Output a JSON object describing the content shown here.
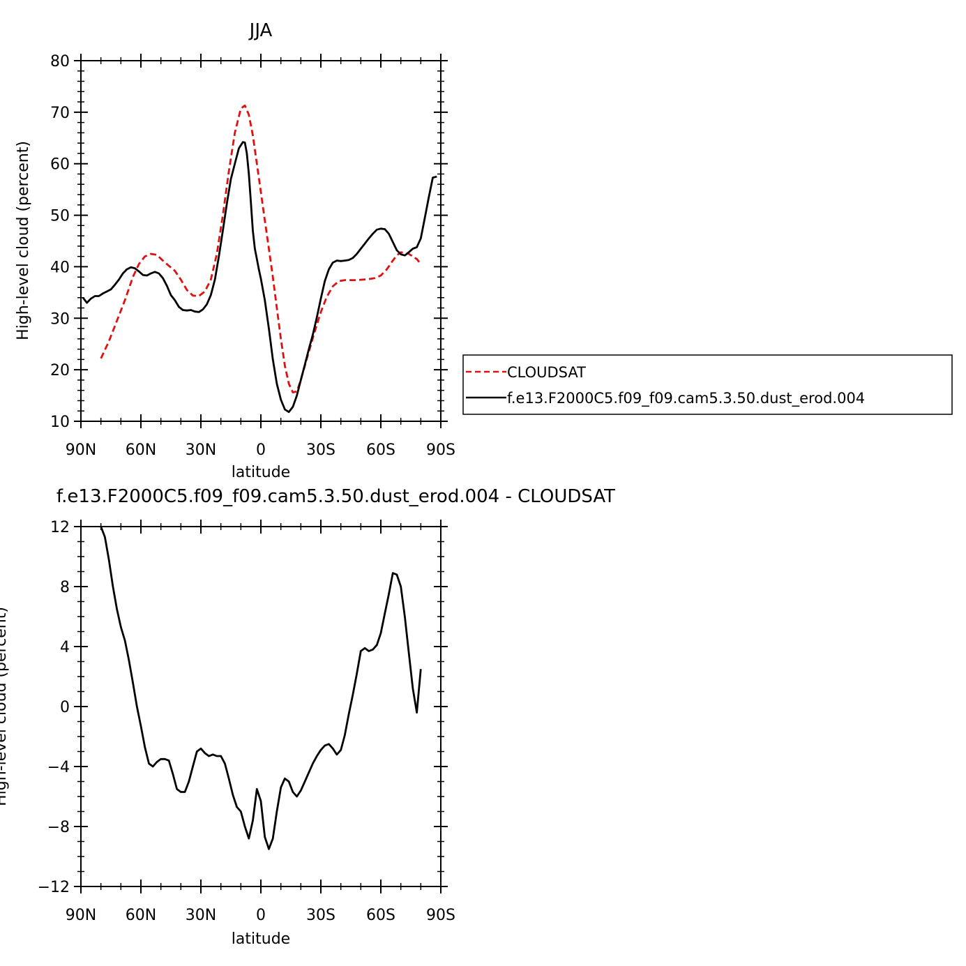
{
  "chart_data": [
    {
      "type": "line",
      "title": "JJA",
      "xlabel": "latitude",
      "ylabel": "High-level cloud (percent)",
      "xlim": [
        90,
        -90
      ],
      "ylim": [
        10,
        80
      ],
      "xticks": [
        90,
        60,
        30,
        0,
        -30,
        -60,
        -90
      ],
      "xticklabels": [
        "90N",
        "60N",
        "30N",
        "0",
        "30S",
        "60S",
        "90S"
      ],
      "yticks": [
        10,
        20,
        30,
        40,
        50,
        60,
        70,
        80
      ],
      "yticklabels": [
        "10",
        "20",
        "30",
        "40",
        "50",
        "60",
        "70",
        "80"
      ],
      "legend_position": "right",
      "series": [
        {
          "name": "CLOUDSAT",
          "color": "#e01010",
          "dash": "dashed",
          "x": [
            80,
            76,
            72,
            68,
            64,
            61,
            58,
            55,
            52,
            49,
            46,
            43,
            40,
            37,
            34,
            31,
            28,
            25,
            22,
            19,
            16,
            13,
            10,
            8,
            6,
            4,
            2,
            0,
            -2,
            -4,
            -6,
            -8,
            -10,
            -12,
            -14,
            -16,
            -18,
            -20,
            -22,
            -24,
            -27,
            -30,
            -33,
            -36,
            -39,
            -42,
            -45,
            -48,
            -51,
            -54,
            -57,
            -60,
            -63,
            -66,
            -68,
            -70,
            -72,
            -74,
            -76,
            -78,
            -80
          ],
          "y": [
            22.2,
            25.5,
            29.5,
            33.5,
            38,
            40.5,
            42,
            42.5,
            42.3,
            41.2,
            40.2,
            39.2,
            37.5,
            35.5,
            34.4,
            34.3,
            35.2,
            37.5,
            42.5,
            50,
            58.5,
            66,
            70.7,
            71.3,
            69.5,
            65.5,
            60,
            54.5,
            49,
            43.5,
            38,
            32,
            26,
            20.8,
            17.3,
            15.6,
            15.8,
            18,
            20.8,
            23.5,
            27.5,
            31.2,
            34.2,
            36.2,
            37.2,
            37.4,
            37.4,
            37.4,
            37.5,
            37.6,
            37.8,
            38.3,
            39.5,
            41.2,
            42.2,
            42.8,
            42.7,
            42.5,
            42,
            41.5,
            40.5
          ]
        },
        {
          "name": "f.e13.F2000C5.f09_f09.cam5.3.50.dust_erod.004",
          "color": "#000000",
          "dash": "solid",
          "x": [
            89,
            87,
            85,
            83,
            81,
            79,
            77,
            75,
            73,
            71,
            69,
            67,
            65,
            63,
            61,
            59,
            57,
            55,
            53,
            51,
            49,
            47,
            45,
            43,
            41,
            39,
            37,
            35,
            33,
            31,
            29,
            27,
            25,
            23,
            21,
            19,
            17,
            15,
            13,
            11,
            9,
            8,
            7,
            6,
            5,
            4,
            3,
            2,
            1,
            0,
            -2,
            -4,
            -6,
            -8,
            -10,
            -12,
            -14,
            -16,
            -18,
            -20,
            -22,
            -24,
            -26,
            -28,
            -30,
            -32,
            -34,
            -36,
            -38,
            -40,
            -42,
            -44,
            -46,
            -48,
            -50,
            -52,
            -54,
            -56,
            -58,
            -60,
            -62,
            -64,
            -66,
            -68,
            -70,
            -72,
            -74,
            -76,
            -78,
            -80,
            -82,
            -84,
            -86,
            -88
          ],
          "y": [
            34,
            33,
            33.8,
            34.3,
            34.3,
            34.8,
            35.2,
            35.6,
            36.5,
            37.5,
            38.7,
            39.5,
            39.9,
            39.7,
            39.1,
            38.4,
            38.3,
            38.7,
            39,
            38.7,
            37.8,
            36.3,
            34.5,
            33.5,
            32.2,
            31.6,
            31.5,
            31.6,
            31.3,
            31.2,
            31.7,
            32.7,
            34.5,
            37.5,
            42,
            47,
            52.3,
            57,
            60,
            63,
            64.2,
            64.1,
            62,
            58,
            52.5,
            47,
            43.5,
            41.5,
            39.5,
            37.7,
            33.5,
            28,
            22,
            17.3,
            14.2,
            12.3,
            11.8,
            12.8,
            15,
            18,
            21,
            24,
            26.8,
            30.2,
            33.8,
            37.2,
            39.5,
            40.8,
            41.2,
            41.1,
            41.2,
            41.3,
            41.7,
            42.5,
            43.5,
            44.5,
            45.5,
            46.4,
            47.2,
            47.4,
            47.3,
            46.4,
            44.8,
            43.2,
            42.4,
            42.2,
            42.8,
            43.5,
            43.8,
            45.5,
            49.5,
            53.5,
            57.3,
            57.5
          ]
        }
      ]
    },
    {
      "type": "line",
      "title": "f.e13.F2000C5.f09_f09.cam5.3.50.dust_erod.004 - CLOUDSAT",
      "xlabel": "latitude",
      "ylabel": "High-level cloud (percent)",
      "xlim": [
        90,
        -90
      ],
      "ylim": [
        -12,
        12
      ],
      "xticks": [
        90,
        60,
        30,
        0,
        -30,
        -60,
        -90
      ],
      "xticklabels": [
        "90N",
        "60N",
        "30N",
        "0",
        "30S",
        "60S",
        "90S"
      ],
      "yticks": [
        -12,
        -8,
        -4,
        0,
        4,
        8,
        12
      ],
      "yticklabels": [
        "−12",
        "−8",
        "−4",
        "0",
        "4",
        "8",
        "12"
      ],
      "series": [
        {
          "color": "#000000",
          "x": [
            80,
            78,
            76,
            74,
            72,
            70,
            68,
            66,
            64,
            62,
            60,
            58,
            56,
            54,
            52,
            50,
            48,
            46,
            44,
            42,
            40,
            38,
            36,
            34,
            32,
            30,
            28,
            26,
            24,
            22,
            20,
            18,
            16,
            14,
            12,
            10,
            8,
            6,
            4,
            2,
            0,
            -2,
            -4,
            -6,
            -8,
            -10,
            -12,
            -14,
            -16,
            -18,
            -20,
            -22,
            -24,
            -26,
            -28,
            -30,
            -32,
            -34,
            -36,
            -38,
            -40,
            -42,
            -44,
            -46,
            -48,
            -50,
            -52,
            -54,
            -56,
            -58,
            -60,
            -62,
            -64,
            -66,
            -68,
            -70,
            -72,
            -74,
            -76,
            -78,
            -80
          ],
          "y": [
            12,
            11.3,
            9.8,
            8,
            6.5,
            5.3,
            4.4,
            3.1,
            1.6,
            0,
            -1.3,
            -2.7,
            -3.8,
            -4,
            -3.7,
            -3.5,
            -3.5,
            -3.6,
            -4.5,
            -5.5,
            -5.7,
            -5.7,
            -5,
            -4,
            -3,
            -2.8,
            -3.1,
            -3.3,
            -3.2,
            -3.3,
            -3.3,
            -3.8,
            -4.8,
            -5.9,
            -6.7,
            -7,
            -8,
            -8.8,
            -7.6,
            -5.5,
            -6.3,
            -8.7,
            -9.5,
            -8.8,
            -7,
            -5.4,
            -4.8,
            -5,
            -5.7,
            -6,
            -5.6,
            -5,
            -4.4,
            -3.8,
            -3.3,
            -2.9,
            -2.6,
            -2.5,
            -2.8,
            -3.2,
            -2.9,
            -1.9,
            -0.5,
            0.8,
            2.2,
            3.7,
            3.9,
            3.7,
            3.8,
            4.1,
            4.9,
            6.2,
            7.5,
            8.9,
            8.8,
            8,
            6,
            3.6,
            1.2,
            -0.4,
            2.5
          ]
        }
      ]
    }
  ]
}
